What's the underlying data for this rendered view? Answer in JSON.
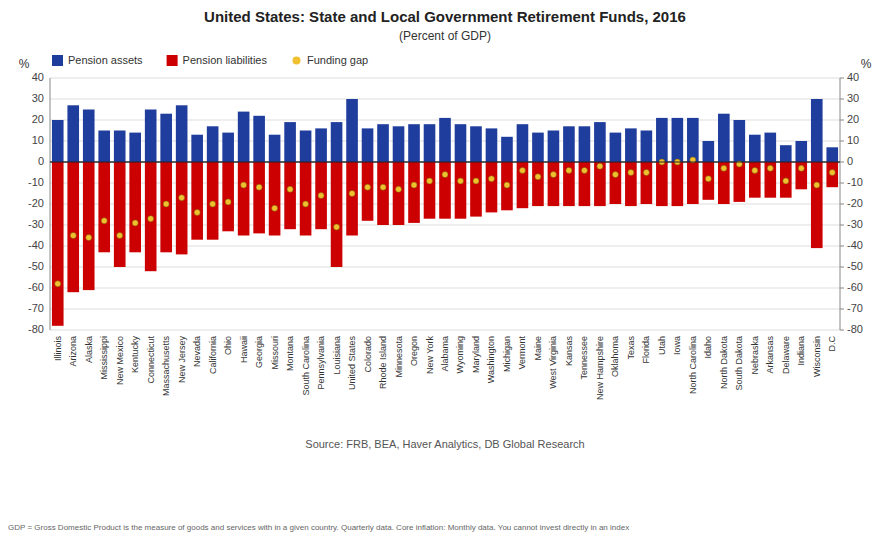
{
  "chart_data": {
    "type": "bar",
    "title": "United States: State and Local Government Retirement Funds, 2016",
    "subtitle": "(Percent of GDP)",
    "ylabel": "%",
    "y2label": "%",
    "annotations": [
      "Source: FRB, BEA, Haver Analytics, DB Global Research",
      "GDP = Gross Domestic Product is the measure of goods and services with in a given country. Quarterly data. Core inflation: Monthly data. You cannot invest directly in an index"
    ],
    "categories": [
      "Illinois",
      "Arizona",
      "Alaska",
      "Mississippi",
      "New Mexico",
      "Kentucky",
      "Connecticut",
      "Massachusetts",
      "New Jersey",
      "Nevada",
      "California",
      "Ohio",
      "Hawaii",
      "Georgia",
      "Missouri",
      "Montana",
      "South Carolina",
      "Pennsylvania",
      "Louisiana",
      "United States",
      "Colorado",
      "Rhode Island",
      "Minnesota",
      "Oregon",
      "New York",
      "Alabama",
      "Wyoming",
      "Maryland",
      "Washington",
      "Michigan",
      "Vermont",
      "Maine",
      "West Virginia",
      "Kansas",
      "Tennessee",
      "New Hampshire",
      "Oklahoma",
      "Texas",
      "Florida",
      "Utah",
      "Iowa",
      "North Carolina",
      "Idaho",
      "North Dakota",
      "South Dakota",
      "Nebraska",
      "Arkansas",
      "Delaware",
      "Indiana",
      "Wisconsin",
      "D.C"
    ],
    "series": [
      {
        "name": "Pension assets",
        "type": "bar",
        "color": "#1f3d9c",
        "values": [
          20,
          27,
          25,
          15,
          15,
          14,
          25,
          23,
          27,
          13,
          17,
          14,
          24,
          22,
          13,
          19,
          15,
          16,
          19,
          30,
          16,
          18,
          17,
          18,
          18,
          21,
          18,
          17,
          16,
          12,
          18,
          14,
          15,
          17,
          17,
          19,
          14,
          16,
          15,
          21,
          21,
          21,
          10,
          23,
          20,
          13,
          14,
          8,
          10,
          30,
          7
        ]
      },
      {
        "name": "Pension liabilities",
        "type": "bar",
        "color": "#cc0000",
        "values": [
          -78,
          -62,
          -61,
          -43,
          -50,
          -43,
          -52,
          -43,
          -44,
          -37,
          -37,
          -33,
          -35,
          -34,
          -35,
          -32,
          -35,
          -32,
          -50,
          -35,
          -28,
          -30,
          -30,
          -29,
          -27,
          -27,
          -27,
          -26,
          -24,
          -23,
          -22,
          -21,
          -21,
          -21,
          -21,
          -21,
          -20,
          -21,
          -20,
          -21,
          -21,
          -20,
          -18,
          -20,
          -19,
          -17,
          -17,
          -17,
          -13,
          -41,
          -12
        ]
      },
      {
        "name": "Funding gap",
        "type": "scatter",
        "color": "#f0c030",
        "marker": "circle",
        "values": [
          -58,
          -35,
          -36,
          -28,
          -35,
          -29,
          -27,
          -20,
          -17,
          -24,
          -20,
          -19,
          -11,
          -12,
          -22,
          -13,
          -20,
          -16,
          -31,
          -15,
          -12,
          -12,
          -13,
          -11,
          -9,
          -6,
          -9,
          -9,
          -8,
          -11,
          -4,
          -7,
          -6,
          -4,
          -4,
          -2,
          -6,
          -5,
          -5,
          0,
          0,
          1,
          -8,
          -3,
          -1,
          -4,
          -3,
          -9,
          -3,
          -11,
          -5
        ]
      }
    ],
    "ylim": [
      -80,
      40
    ],
    "yticks": [
      -80,
      -70,
      -60,
      -50,
      -40,
      -30,
      -20,
      -10,
      0,
      10,
      20,
      30,
      40
    ],
    "y2lim": [
      -80,
      40
    ],
    "y2ticks": [
      -80,
      -70,
      -60,
      -50,
      -40,
      -30,
      -20,
      -10,
      0,
      10,
      20,
      30,
      40
    ],
    "grid": true,
    "legend": "upper left"
  }
}
